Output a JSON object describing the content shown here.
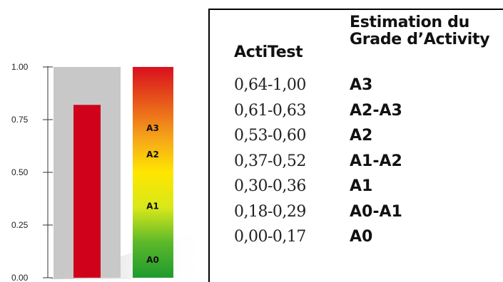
{
  "chart_data": {
    "type": "bar",
    "ylim": [
      0,
      1
    ],
    "y_ticks": [
      "0.00",
      "0.25",
      "0.50",
      "0.75",
      "1.00"
    ],
    "y_tick_values": [
      0,
      0.25,
      0.5,
      0.75,
      1
    ],
    "bar_value": 0.82,
    "bar_color": "#d0021b",
    "background_bar_color": "#c8c8c8",
    "scale_gradient": [
      "#1f9a2e",
      "#5cb82a",
      "#d8e81a",
      "#ffe600",
      "#f5a31a",
      "#e8581a",
      "#d9101e"
    ],
    "scale_labels": [
      {
        "text": "A3",
        "value": 0.71
      },
      {
        "text": "A2",
        "value": 0.585
      },
      {
        "text": "A1",
        "value": 0.34
      },
      {
        "text": "A0",
        "value": 0.085
      }
    ]
  },
  "table": {
    "header_actitest": "ActiTest",
    "header_grade": "Estimation du\nGrade d’Activity",
    "rows": [
      {
        "range": "0,64-1,00",
        "grade": "A3"
      },
      {
        "range": "0,61-0,63",
        "grade": "A2-A3"
      },
      {
        "range": "0,53-0,60",
        "grade": "A2"
      },
      {
        "range": "0,37-0,52",
        "grade": "A1-A2"
      },
      {
        "range": "0,30-0,36",
        "grade": "A1"
      },
      {
        "range": "0,18-0,29",
        "grade": "A0-A1"
      },
      {
        "range": "0,00-0,17",
        "grade": "A0"
      }
    ]
  }
}
